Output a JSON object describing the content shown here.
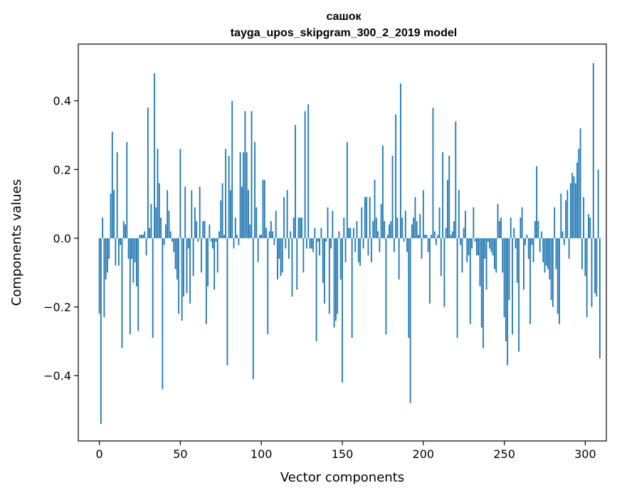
{
  "chart_data": {
    "type": "bar",
    "title_line1": "сашок",
    "title_line2": "tayga_upos_skipgram_300_2_2019 model",
    "xlabel": "Vector components",
    "ylabel": "Components values",
    "xlim": [
      -13,
      313
    ],
    "ylim": [
      -0.59,
      0.565
    ],
    "xticks": [
      0,
      50,
      100,
      150,
      200,
      250,
      300
    ],
    "xtick_labels": [
      "0",
      "50",
      "100",
      "150",
      "200",
      "250",
      "300"
    ],
    "yticks": [
      -0.4,
      -0.2,
      0.0,
      0.2,
      0.4
    ],
    "ytick_labels": [
      "−0.4",
      "−0.2",
      "0.0",
      "0.2",
      "0.4"
    ],
    "bar_color": "#1f77b4",
    "grid": false,
    "values": [
      -0.22,
      -0.54,
      0.06,
      -0.23,
      -0.12,
      -0.1,
      -0.06,
      0.13,
      0.31,
      0.14,
      -0.08,
      0.25,
      -0.08,
      -0.02,
      -0.32,
      0.05,
      0.04,
      0.28,
      -0.06,
      -0.28,
      -0.06,
      -0.13,
      -0.07,
      -0.14,
      -0.27,
      0.01,
      0.01,
      0.01,
      0.02,
      -0.05,
      0.38,
      0.03,
      0.1,
      -0.29,
      0.48,
      0.09,
      0.26,
      0.16,
      0.06,
      -0.44,
      -0.02,
      0.04,
      0.14,
      0.08,
      0.02,
      -0.01,
      -0.04,
      -0.09,
      -0.12,
      -0.22,
      0.26,
      -0.24,
      -0.17,
      0.15,
      -0.16,
      -0.03,
      -0.19,
      0.14,
      -0.11,
      0.09,
      0.05,
      -0.01,
      0.15,
      -0.1,
      0.05,
      0.05,
      -0.25,
      -0.14,
      0.04,
      -0.01,
      -0.03,
      -0.15,
      -0.01,
      -0.1,
      0.02,
      0.11,
      0.16,
      0.01,
      0.26,
      -0.37,
      0.24,
      0.14,
      0.4,
      -0.03,
      0.06,
      0.01,
      -0.02,
      0.25,
      0.15,
      0.25,
      0.37,
      0.25,
      0.14,
      0.04,
      0.37,
      -0.41,
      0.28,
      0.09,
      -0.07,
      0.01,
      0.01,
      0.17,
      0.17,
      0.03,
      -0.28,
      0.02,
      0.05,
      0.02,
      -0.02,
      0.08,
      -0.12,
      -0.06,
      -0.11,
      -0.1,
      0.12,
      -0.03,
      0.14,
      -0.06,
      0.02,
      -0.17,
      0.06,
      0.33,
      -0.15,
      0.06,
      0.06,
      0.06,
      -0.1,
      0.37,
      -0.03,
      0.39,
      -0.03,
      -0.03,
      -0.04,
      0.03,
      -0.3,
      -0.01,
      -0.05,
      0.03,
      -0.13,
      -0.19,
      -0.01,
      0.09,
      -0.22,
      -0.03,
      0.08,
      -0.26,
      -0.24,
      -0.22,
      0.02,
      -0.12,
      -0.42,
      0.06,
      -0.07,
      0.28,
      0.03,
      0.03,
      -0.29,
      0.03,
      -0.04,
      0.05,
      -0.07,
      -0.08,
      0.09,
      -0.03,
      0.12,
      0.12,
      -0.05,
      0.12,
      -0.07,
      0.05,
      0.17,
      0.06,
      0.02,
      -0.04,
      0.1,
      0.27,
      0.05,
      -0.28,
      0.01,
      0.04,
      0.05,
      0.24,
      -0.04,
      0.36,
      0.06,
      -0.12,
      0.45,
      0.06,
      -0.01,
      0.08,
      -0.04,
      -0.29,
      -0.48,
      0.04,
      0.06,
      0.12,
      0.05,
      0.01,
      0.07,
      -0.06,
      0.14,
      0.01,
      0.01,
      -0.04,
      -0.19,
      0.01,
      0.38,
      0.02,
      -0.02,
      0.01,
      0.09,
      -0.11,
      0.25,
      -0.2,
      0.03,
      0.17,
      0.24,
      0.01,
      0.02,
      0.05,
      0.34,
      -0.29,
      0.14,
      -0.02,
      -0.1,
      0.03,
      0.08,
      -0.07,
      -0.05,
      -0.25,
      -0.03,
      0.09,
      -0.01,
      -0.05,
      -0.05,
      -0.14,
      -0.26,
      -0.32,
      -0.06,
      -0.15,
      -0.01,
      -0.03,
      -0.04,
      -0.05,
      -0.09,
      -0.1,
      0.1,
      0.05,
      0.06,
      -0.1,
      -0.23,
      -0.3,
      -0.37,
      -0.18,
      0.06,
      -0.28,
      0.03,
      -0.03,
      -0.13,
      -0.33,
      0.06,
      0.09,
      -0.15,
      -0.02,
      0.01,
      -0.06,
      -0.25,
      -0.02,
      -0.07,
      0.05,
      0.21,
      0.05,
      -0.04,
      0.02,
      -0.07,
      -0.1,
      -0.08,
      -0.09,
      -0.12,
      -0.18,
      -0.2,
      0.09,
      -0.09,
      -0.22,
      -0.25,
      0.13,
      0.02,
      -0.02,
      0.11,
      0.14,
      -0.06,
      0.16,
      0.19,
      0.18,
      0.16,
      0.22,
      0.26,
      0.32,
      -0.09,
      0.12,
      -0.11,
      -0.23,
      0.07,
      0.06,
      -0.2,
      0.51,
      -0.16,
      -0.17,
      0.2,
      -0.35
    ]
  }
}
